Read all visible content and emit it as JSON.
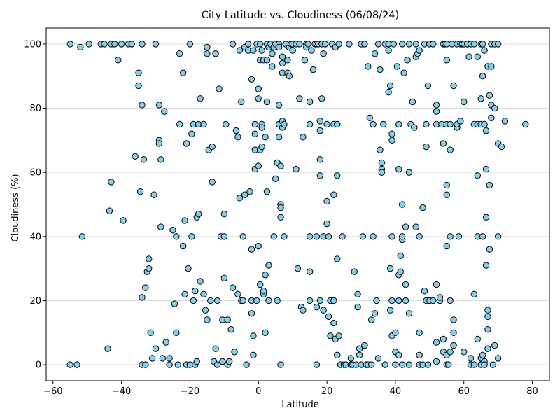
{
  "chart_data": {
    "type": "scatter",
    "title": "City Latitude vs. Cloudiness (06/08/24)",
    "xlabel": "Latitude",
    "ylabel": "Cloudiness (%)",
    "xlim": [
      -62,
      85
    ],
    "ylim": [
      -5,
      105
    ],
    "x_ticks": [
      -60,
      -40,
      -20,
      0,
      20,
      40,
      60,
      80
    ],
    "y_ticks": [
      0,
      20,
      40,
      60,
      80,
      100
    ],
    "grid": "horizontal",
    "marker": {
      "fill": "#87ceeb",
      "edge": "#000000",
      "shape": "circle"
    },
    "points": [
      [
        -55,
        100
      ],
      [
        -55,
        0
      ],
      [
        -53,
        0
      ],
      [
        -52,
        99
      ],
      [
        -51.5,
        40
      ],
      [
        -49.5,
        100
      ],
      [
        -46,
        100
      ],
      [
        -45,
        100
      ],
      [
        -44,
        5
      ],
      [
        -43.5,
        48
      ],
      [
        -43,
        57
      ],
      [
        -43,
        100
      ],
      [
        -42,
        100
      ],
      [
        -41,
        95
      ],
      [
        -40,
        100
      ],
      [
        -39.5,
        45
      ],
      [
        -38,
        100
      ],
      [
        -37,
        100
      ],
      [
        -36,
        65
      ],
      [
        -35,
        91
      ],
      [
        -35,
        87
      ],
      [
        -34.5,
        54
      ],
      [
        -34,
        100
      ],
      [
        -34,
        100
      ],
      [
        -34,
        81
      ],
      [
        -33.5,
        64
      ],
      [
        -34,
        21
      ],
      [
        -34,
        0
      ],
      [
        -33,
        0
      ],
      [
        -33,
        24
      ],
      [
        -32.5,
        29
      ],
      [
        -32,
        30
      ],
      [
        -32,
        33
      ],
      [
        -31.5,
        10
      ],
      [
        -31,
        2
      ],
      [
        -30.5,
        53
      ],
      [
        -30,
        100
      ],
      [
        -30,
        5
      ],
      [
        -29,
        81
      ],
      [
        -29,
        70
      ],
      [
        -29,
        69
      ],
      [
        -28.5,
        64
      ],
      [
        -28.5,
        43
      ],
      [
        -28,
        2
      ],
      [
        -27.5,
        79
      ],
      [
        -27,
        7
      ],
      [
        -26,
        2
      ],
      [
        -26,
        0
      ],
      [
        -25,
        42
      ],
      [
        -24.5,
        19
      ],
      [
        -24,
        10
      ],
      [
        -24,
        40
      ],
      [
        -23.5,
        0
      ],
      [
        -23,
        97
      ],
      [
        -23,
        75
      ],
      [
        -22,
        91
      ],
      [
        -22,
        37
      ],
      [
        -21.5,
        45
      ],
      [
        -21.5,
        22
      ],
      [
        -21,
        0
      ],
      [
        -21,
        69
      ],
      [
        -20.5,
        30
      ],
      [
        -20,
        100
      ],
      [
        -20,
        0
      ],
      [
        -19.5,
        72
      ],
      [
        -19.5,
        40
      ],
      [
        -19,
        75
      ],
      [
        -19,
        20
      ],
      [
        -18.5,
        23
      ],
      [
        -18.5,
        0
      ],
      [
        -18,
        1
      ],
      [
        -18,
        46
      ],
      [
        -17.5,
        47
      ],
      [
        -17.5,
        75
      ],
      [
        -17,
        26
      ],
      [
        -17,
        83
      ],
      [
        -16,
        75
      ],
      [
        -16,
        22
      ],
      [
        -15.5,
        17
      ],
      [
        -15,
        14
      ],
      [
        -15,
        97
      ],
      [
        -15,
        99
      ],
      [
        -14.5,
        67
      ],
      [
        -14,
        20
      ],
      [
        -13.5,
        68
      ],
      [
        -13.5,
        57
      ],
      [
        -13,
        1
      ],
      [
        -12.5,
        97
      ],
      [
        -12.5,
        5
      ],
      [
        -12,
        20
      ],
      [
        -12,
        0
      ],
      [
        -11.5,
        86
      ],
      [
        -11,
        40
      ],
      [
        -10.5,
        1
      ],
      [
        -10.5,
        14
      ],
      [
        -10,
        47
      ],
      [
        -10,
        27
      ],
      [
        -10,
        40
      ],
      [
        -9.5,
        75
      ],
      [
        -9,
        14
      ],
      [
        -9,
        0
      ],
      [
        -8.5,
        1
      ],
      [
        -8,
        11
      ],
      [
        -7.5,
        100
      ],
      [
        -7.5,
        24
      ],
      [
        -7,
        4
      ],
      [
        -6.5,
        73
      ],
      [
        -6,
        71
      ],
      [
        -6,
        22
      ],
      [
        -5.5,
        98
      ],
      [
        -5.5,
        52
      ],
      [
        -5,
        20
      ],
      [
        -5,
        82
      ],
      [
        -4.5,
        40
      ],
      [
        -4.5,
        20
      ],
      [
        -4,
        99
      ],
      [
        -4,
        53
      ],
      [
        -3.5,
        0
      ],
      [
        -3,
        100
      ],
      [
        -3,
        98
      ],
      [
        -2.5,
        54
      ],
      [
        -2,
        89
      ],
      [
        -2,
        16
      ],
      [
        -2,
        20
      ],
      [
        -2,
        36
      ],
      [
        -1.5,
        9
      ],
      [
        -1.5,
        3
      ],
      [
        -1.5,
        98
      ],
      [
        -1,
        72
      ],
      [
        -1,
        67
      ],
      [
        -1,
        61
      ],
      [
        -1,
        75
      ],
      [
        -0.5,
        100
      ],
      [
        -0.5,
        20
      ],
      [
        0,
        86
      ],
      [
        0,
        83
      ],
      [
        0,
        62
      ],
      [
        0,
        37
      ],
      [
        0.5,
        95
      ],
      [
        0.5,
        100
      ],
      [
        0.5,
        25
      ],
      [
        0.5,
        67
      ],
      [
        1,
        75
      ],
      [
        1,
        74
      ],
      [
        1,
        98
      ],
      [
        1,
        68
      ],
      [
        1.5,
        22
      ],
      [
        1.5,
        95
      ],
      [
        1.5,
        23
      ],
      [
        2,
        71
      ],
      [
        2,
        28
      ],
      [
        2,
        10
      ],
      [
        2.5,
        100
      ],
      [
        2.5,
        95
      ],
      [
        2.5,
        82
      ],
      [
        2.5,
        54
      ],
      [
        3,
        99
      ],
      [
        3,
        31
      ],
      [
        3,
        20
      ],
      [
        3.5,
        100
      ],
      [
        4,
        97
      ],
      [
        4,
        93
      ],
      [
        4.5,
        40
      ],
      [
        4.5,
        99
      ],
      [
        5,
        100
      ],
      [
        5,
        58
      ],
      [
        5.5,
        20
      ],
      [
        5.5,
        63
      ],
      [
        6,
        100
      ],
      [
        6,
        99
      ],
      [
        6,
        81
      ],
      [
        6,
        75
      ],
      [
        6,
        71
      ],
      [
        6.5,
        62
      ],
      [
        6.5,
        50
      ],
      [
        6.5,
        49
      ],
      [
        6.5,
        46
      ],
      [
        6.5,
        0
      ],
      [
        7,
        96
      ],
      [
        7,
        94
      ],
      [
        7,
        91
      ],
      [
        7,
        76
      ],
      [
        7,
        74
      ],
      [
        7.5,
        75
      ],
      [
        7.5,
        40
      ],
      [
        8,
        100
      ],
      [
        8,
        100
      ],
      [
        8.5,
        95
      ],
      [
        8.5,
        91
      ],
      [
        9,
        90
      ],
      [
        9,
        99
      ],
      [
        9.5,
        100
      ],
      [
        10,
        98
      ],
      [
        10,
        100
      ],
      [
        11,
        100
      ],
      [
        11,
        61
      ],
      [
        11.5,
        30
      ],
      [
        12,
        83
      ],
      [
        12,
        100
      ],
      [
        12.5,
        18
      ],
      [
        13,
        17
      ],
      [
        13,
        71
      ],
      [
        13.5,
        95
      ],
      [
        14,
        100
      ],
      [
        14,
        99
      ],
      [
        14.5,
        100
      ],
      [
        15,
        75
      ],
      [
        15,
        40
      ],
      [
        15,
        20
      ],
      [
        15,
        29
      ],
      [
        15,
        82
      ],
      [
        15.5,
        98
      ],
      [
        16,
        92
      ],
      [
        16.5,
        100
      ],
      [
        17,
        40
      ],
      [
        17,
        100
      ],
      [
        17,
        0
      ],
      [
        17,
        18
      ],
      [
        17.5,
        100
      ],
      [
        18,
        20
      ],
      [
        18,
        76
      ],
      [
        18,
        73
      ],
      [
        18,
        64
      ],
      [
        18,
        59
      ],
      [
        18.5,
        100
      ],
      [
        18.5,
        83
      ],
      [
        19,
        97
      ],
      [
        19,
        40
      ],
      [
        19,
        17
      ],
      [
        19.5,
        100
      ],
      [
        20,
        75
      ],
      [
        20,
        51
      ],
      [
        20,
        44
      ],
      [
        20.5,
        15
      ],
      [
        20.5,
        40
      ],
      [
        21,
        20
      ],
      [
        21,
        9
      ],
      [
        21.5,
        100
      ],
      [
        22,
        75
      ],
      [
        22,
        20
      ],
      [
        22,
        53
      ],
      [
        22,
        13
      ],
      [
        22.5,
        8
      ],
      [
        22.5,
        99
      ],
      [
        23,
        75
      ],
      [
        23,
        33
      ],
      [
        23,
        59
      ],
      [
        23,
        3
      ],
      [
        23.5,
        100
      ],
      [
        23,
        75
      ],
      [
        23.5,
        9
      ],
      [
        24,
        0
      ],
      [
        24.5,
        40
      ],
      [
        25,
        0
      ],
      [
        25.5,
        0
      ],
      [
        26.5,
        100
      ],
      [
        27,
        2
      ],
      [
        27,
        0
      ],
      [
        27.5,
        0
      ],
      [
        28,
        29
      ],
      [
        28.5,
        0
      ],
      [
        29,
        18
      ],
      [
        29,
        22
      ],
      [
        29.5,
        5
      ],
      [
        29.5,
        3
      ],
      [
        30,
        0
      ],
      [
        30,
        100
      ],
      [
        30.5,
        40
      ],
      [
        31,
        100
      ],
      [
        31,
        6
      ],
      [
        31.5,
        0
      ],
      [
        32,
        93
      ],
      [
        32,
        0
      ],
      [
        32.5,
        77
      ],
      [
        33,
        14
      ],
      [
        33,
        0
      ],
      [
        33.5,
        75
      ],
      [
        33.5,
        40
      ],
      [
        34,
        97
      ],
      [
        34,
        16
      ],
      [
        34.5,
        20
      ],
      [
        35,
        100
      ],
      [
        35,
        2
      ],
      [
        35.5,
        92
      ],
      [
        35.5,
        67
      ],
      [
        36,
        63
      ],
      [
        36,
        61
      ],
      [
        36,
        60
      ],
      [
        36.5,
        75
      ],
      [
        37,
        100
      ],
      [
        37,
        0
      ],
      [
        37,
        0
      ],
      [
        38,
        100
      ],
      [
        38,
        85
      ],
      [
        38,
        98
      ],
      [
        38.5,
        87
      ],
      [
        38.5,
        30
      ],
      [
        38.5,
        17
      ],
      [
        39,
        72
      ],
      [
        39,
        70
      ],
      [
        39,
        40
      ],
      [
        39,
        20
      ],
      [
        39,
        9
      ],
      [
        39.5,
        100
      ],
      [
        40,
        10
      ],
      [
        40,
        4
      ],
      [
        40,
        0
      ],
      [
        40.5,
        93
      ],
      [
        41,
        75
      ],
      [
        41,
        61
      ],
      [
        41,
        28
      ],
      [
        41,
        3
      ],
      [
        41,
        20
      ],
      [
        41.5,
        29
      ],
      [
        41.5,
        34
      ],
      [
        42,
        100
      ],
      [
        42,
        39
      ],
      [
        42,
        40
      ],
      [
        42,
        50
      ],
      [
        42,
        0
      ],
      [
        42.5,
        91
      ],
      [
        43,
        20
      ],
      [
        43,
        25
      ],
      [
        43,
        43
      ],
      [
        43.5,
        95
      ],
      [
        44,
        100
      ],
      [
        44,
        60
      ],
      [
        44,
        16
      ],
      [
        44,
        0
      ],
      [
        44.5,
        75
      ],
      [
        45,
        82
      ],
      [
        45.5,
        74
      ],
      [
        46,
        96
      ],
      [
        46,
        43
      ],
      [
        46,
        100
      ],
      [
        46.5,
        97
      ],
      [
        47,
        98
      ],
      [
        47,
        40
      ],
      [
        47,
        10
      ],
      [
        47,
        3
      ],
      [
        47,
        0
      ],
      [
        48,
        49
      ],
      [
        48,
        0
      ],
      [
        48.5,
        100
      ],
      [
        48.5,
        23
      ],
      [
        49,
        20
      ],
      [
        49,
        75
      ],
      [
        49,
        68
      ],
      [
        49.5,
        87
      ],
      [
        49.5,
        0
      ],
      [
        50,
        100
      ],
      [
        50,
        20
      ],
      [
        51,
        100
      ],
      [
        51,
        20
      ],
      [
        52,
        81
      ],
      [
        52,
        79
      ],
      [
        52,
        75
      ],
      [
        52,
        25
      ],
      [
        52,
        7
      ],
      [
        52,
        1
      ],
      [
        53,
        20
      ],
      [
        53,
        21
      ],
      [
        53.5,
        75
      ],
      [
        54,
        100
      ],
      [
        54,
        69
      ],
      [
        54,
        8
      ],
      [
        54,
        4
      ],
      [
        54.5,
        100
      ],
      [
        55,
        75
      ],
      [
        55,
        100
      ],
      [
        55,
        95
      ],
      [
        55,
        56
      ],
      [
        55,
        53
      ],
      [
        55,
        37
      ],
      [
        55,
        3
      ],
      [
        55,
        0
      ],
      [
        55.5,
        0
      ],
      [
        56,
        75
      ],
      [
        56,
        67
      ],
      [
        56,
        40
      ],
      [
        56,
        20
      ],
      [
        56,
        4
      ],
      [
        56.5,
        100
      ],
      [
        57,
        87
      ],
      [
        57,
        14
      ],
      [
        57,
        10
      ],
      [
        57,
        6
      ],
      [
        58,
        100
      ],
      [
        58,
        74
      ],
      [
        58,
        75
      ],
      [
        58.5,
        40
      ],
      [
        59,
        100
      ],
      [
        59,
        76
      ],
      [
        59.5,
        100
      ],
      [
        60,
        100
      ],
      [
        60,
        82
      ],
      [
        60,
        4
      ],
      [
        61,
        100
      ],
      [
        61,
        100
      ],
      [
        61.5,
        96
      ],
      [
        62,
        100
      ],
      [
        62,
        2
      ],
      [
        62,
        0
      ],
      [
        63,
        100
      ],
      [
        63,
        75
      ],
      [
        63,
        22
      ],
      [
        63,
        0
      ],
      [
        64,
        96
      ],
      [
        64,
        75
      ],
      [
        64,
        59
      ],
      [
        64,
        40
      ],
      [
        64,
        8
      ],
      [
        65,
        100
      ],
      [
        65,
        83
      ],
      [
        65,
        75
      ],
      [
        65,
        2
      ],
      [
        65,
        0
      ],
      [
        65.5,
        100
      ],
      [
        65.5,
        90
      ],
      [
        65.5,
        40
      ],
      [
        65.5,
        3
      ],
      [
        66,
        98
      ],
      [
        66,
        75
      ],
      [
        66,
        1
      ],
      [
        66,
        0
      ],
      [
        66.5,
        31
      ],
      [
        66.5,
        46
      ],
      [
        66.5,
        61
      ],
      [
        66.5,
        73
      ],
      [
        67,
        93
      ],
      [
        67,
        15
      ],
      [
        67,
        11
      ],
      [
        67,
        17
      ],
      [
        67,
        5
      ],
      [
        67.5,
        84
      ],
      [
        67.5,
        56
      ],
      [
        67.5,
        36
      ],
      [
        68,
        93
      ],
      [
        68,
        77
      ],
      [
        68,
        81
      ],
      [
        68,
        100
      ],
      [
        68.5,
        0
      ],
      [
        69,
        100
      ],
      [
        69,
        80
      ],
      [
        69,
        6
      ],
      [
        70,
        40
      ],
      [
        70,
        69
      ],
      [
        70,
        2
      ],
      [
        70,
        100
      ],
      [
        71,
        68
      ],
      [
        72,
        76
      ],
      [
        78,
        75
      ]
    ]
  }
}
